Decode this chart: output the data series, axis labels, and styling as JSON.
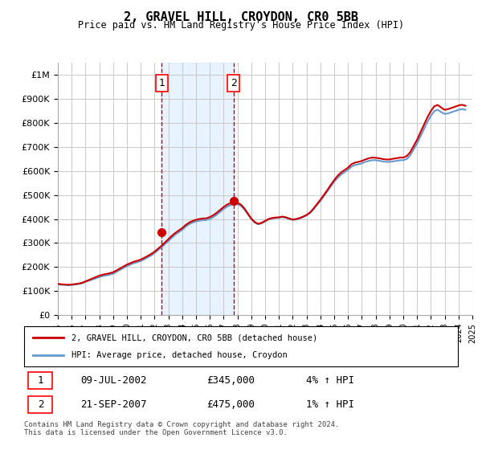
{
  "title": "2, GRAVEL HILL, CROYDON, CR0 5BB",
  "subtitle": "Price paid vs. HM Land Registry's House Price Index (HPI)",
  "background_color": "#ffffff",
  "plot_bg_color": "#ffffff",
  "grid_color": "#cccccc",
  "hpi_line_color": "#6699cc",
  "price_line_color": "#cc0000",
  "shade_color": "#ddeeff",
  "ylim": [
    0,
    1050000
  ],
  "yticks": [
    0,
    100000,
    200000,
    300000,
    400000,
    500000,
    600000,
    700000,
    800000,
    900000,
    1000000
  ],
  "ytick_labels": [
    "£0",
    "£100K",
    "£200K",
    "£300K",
    "£400K",
    "£500K",
    "£600K",
    "£700K",
    "£800K",
    "£900K",
    "£1M"
  ],
  "year_start": 1995,
  "year_end": 2025,
  "sale1_year": 2002.52,
  "sale1_price": 345000,
  "sale1_label": "1",
  "sale1_date": "09-JUL-2002",
  "sale1_pct": "4%",
  "sale2_year": 2007.72,
  "sale2_price": 475000,
  "sale2_label": "2",
  "sale2_date": "21-SEP-2007",
  "sale2_pct": "1%",
  "legend_line1": "2, GRAVEL HILL, CROYDON, CR0 5BB (detached house)",
  "legend_line2": "HPI: Average price, detached house, Croydon",
  "footnote": "Contains HM Land Registry data © Crown copyright and database right 2024.\nThis data is licensed under the Open Government Licence v3.0.",
  "hpi_data_x": [
    1995.0,
    1995.25,
    1995.5,
    1995.75,
    1996.0,
    1996.25,
    1996.5,
    1996.75,
    1997.0,
    1997.25,
    1997.5,
    1997.75,
    1998.0,
    1998.25,
    1998.5,
    1998.75,
    1999.0,
    1999.25,
    1999.5,
    1999.75,
    2000.0,
    2000.25,
    2000.5,
    2000.75,
    2001.0,
    2001.25,
    2001.5,
    2001.75,
    2002.0,
    2002.25,
    2002.5,
    2002.75,
    2003.0,
    2003.25,
    2003.5,
    2003.75,
    2004.0,
    2004.25,
    2004.5,
    2004.75,
    2005.0,
    2005.25,
    2005.5,
    2005.75,
    2006.0,
    2006.25,
    2006.5,
    2006.75,
    2007.0,
    2007.25,
    2007.5,
    2007.75,
    2008.0,
    2008.25,
    2008.5,
    2008.75,
    2009.0,
    2009.25,
    2009.5,
    2009.75,
    2010.0,
    2010.25,
    2010.5,
    2010.75,
    2011.0,
    2011.25,
    2011.5,
    2011.75,
    2012.0,
    2012.25,
    2012.5,
    2012.75,
    2013.0,
    2013.25,
    2013.5,
    2013.75,
    2014.0,
    2014.25,
    2014.5,
    2014.75,
    2015.0,
    2015.25,
    2015.5,
    2015.75,
    2016.0,
    2016.25,
    2016.5,
    2016.75,
    2017.0,
    2017.25,
    2017.5,
    2017.75,
    2018.0,
    2018.25,
    2018.5,
    2018.75,
    2019.0,
    2019.25,
    2019.5,
    2019.75,
    2020.0,
    2020.25,
    2020.5,
    2020.75,
    2021.0,
    2021.25,
    2021.5,
    2021.75,
    2022.0,
    2022.25,
    2022.5,
    2022.75,
    2023.0,
    2023.25,
    2023.5,
    2023.75,
    2024.0,
    2024.25,
    2024.5
  ],
  "hpi_data_y": [
    128000,
    126000,
    125000,
    124000,
    125000,
    127000,
    129000,
    132000,
    138000,
    143000,
    148000,
    153000,
    158000,
    162000,
    165000,
    168000,
    172000,
    180000,
    188000,
    196000,
    204000,
    210000,
    216000,
    220000,
    225000,
    232000,
    240000,
    248000,
    258000,
    270000,
    282000,
    295000,
    308000,
    322000,
    335000,
    345000,
    355000,
    368000,
    378000,
    385000,
    390000,
    393000,
    395000,
    396000,
    400000,
    408000,
    418000,
    430000,
    442000,
    452000,
    458000,
    462000,
    462000,
    455000,
    440000,
    420000,
    400000,
    385000,
    378000,
    382000,
    390000,
    398000,
    402000,
    404000,
    405000,
    408000,
    405000,
    400000,
    396000,
    398000,
    402000,
    408000,
    415000,
    425000,
    440000,
    458000,
    475000,
    495000,
    515000,
    535000,
    555000,
    572000,
    585000,
    595000,
    605000,
    618000,
    625000,
    628000,
    632000,
    638000,
    642000,
    645000,
    645000,
    643000,
    640000,
    638000,
    638000,
    640000,
    642000,
    645000,
    645000,
    650000,
    665000,
    690000,
    715000,
    745000,
    775000,
    805000,
    830000,
    850000,
    855000,
    845000,
    838000,
    840000,
    845000,
    850000,
    855000,
    858000,
    855000
  ],
  "price_data_x": [
    1995.0,
    1995.25,
    1995.5,
    1995.75,
    1996.0,
    1996.25,
    1996.5,
    1996.75,
    1997.0,
    1997.25,
    1997.5,
    1997.75,
    1998.0,
    1998.25,
    1998.5,
    1998.75,
    1999.0,
    1999.25,
    1999.5,
    1999.75,
    2000.0,
    2000.25,
    2000.5,
    2000.75,
    2001.0,
    2001.25,
    2001.5,
    2001.75,
    2002.0,
    2002.25,
    2002.5,
    2002.75,
    2003.0,
    2003.25,
    2003.5,
    2003.75,
    2004.0,
    2004.25,
    2004.5,
    2004.75,
    2005.0,
    2005.25,
    2005.5,
    2005.75,
    2006.0,
    2006.25,
    2006.5,
    2006.75,
    2007.0,
    2007.25,
    2007.5,
    2007.75,
    2008.0,
    2008.25,
    2008.5,
    2008.75,
    2009.0,
    2009.25,
    2009.5,
    2009.75,
    2010.0,
    2010.25,
    2010.5,
    2010.75,
    2011.0,
    2011.25,
    2011.5,
    2011.75,
    2012.0,
    2012.25,
    2012.5,
    2012.75,
    2013.0,
    2013.25,
    2013.5,
    2013.75,
    2014.0,
    2014.25,
    2014.5,
    2014.75,
    2015.0,
    2015.25,
    2015.5,
    2015.75,
    2016.0,
    2016.25,
    2016.5,
    2016.75,
    2017.0,
    2017.25,
    2017.5,
    2017.75,
    2018.0,
    2018.25,
    2018.5,
    2018.75,
    2019.0,
    2019.25,
    2019.5,
    2019.75,
    2020.0,
    2020.25,
    2020.5,
    2020.75,
    2021.0,
    2021.25,
    2021.5,
    2021.75,
    2022.0,
    2022.25,
    2022.5,
    2022.75,
    2023.0,
    2023.25,
    2023.5,
    2023.75,
    2024.0,
    2024.25,
    2024.5
  ],
  "price_data_y": [
    130000,
    128000,
    127000,
    126000,
    127000,
    129000,
    131000,
    134000,
    140000,
    146000,
    152000,
    158000,
    164000,
    168000,
    171000,
    174000,
    178000,
    186000,
    194000,
    202000,
    210000,
    216000,
    222000,
    226000,
    231000,
    238000,
    246000,
    254000,
    264000,
    276000,
    288000,
    302000,
    316000,
    330000,
    342000,
    352000,
    362000,
    375000,
    385000,
    392000,
    397000,
    400000,
    402000,
    403000,
    408000,
    416000,
    426000,
    438000,
    450000,
    460000,
    466000,
    470000,
    468000,
    460000,
    444000,
    423000,
    402000,
    387000,
    380000,
    384000,
    392000,
    400000,
    404000,
    406000,
    407000,
    410000,
    407000,
    402000,
    398000,
    400000,
    404000,
    410000,
    417000,
    427000,
    443000,
    462000,
    480000,
    500000,
    520000,
    542000,
    562000,
    580000,
    594000,
    604000,
    614000,
    628000,
    635000,
    638000,
    642000,
    648000,
    653000,
    656000,
    655000,
    653000,
    650000,
    648000,
    648000,
    651000,
    653000,
    656000,
    656000,
    662000,
    678000,
    704000,
    730000,
    762000,
    793000,
    824000,
    850000,
    870000,
    875000,
    864000,
    855000,
    858000,
    863000,
    868000,
    873000,
    876000,
    872000
  ]
}
